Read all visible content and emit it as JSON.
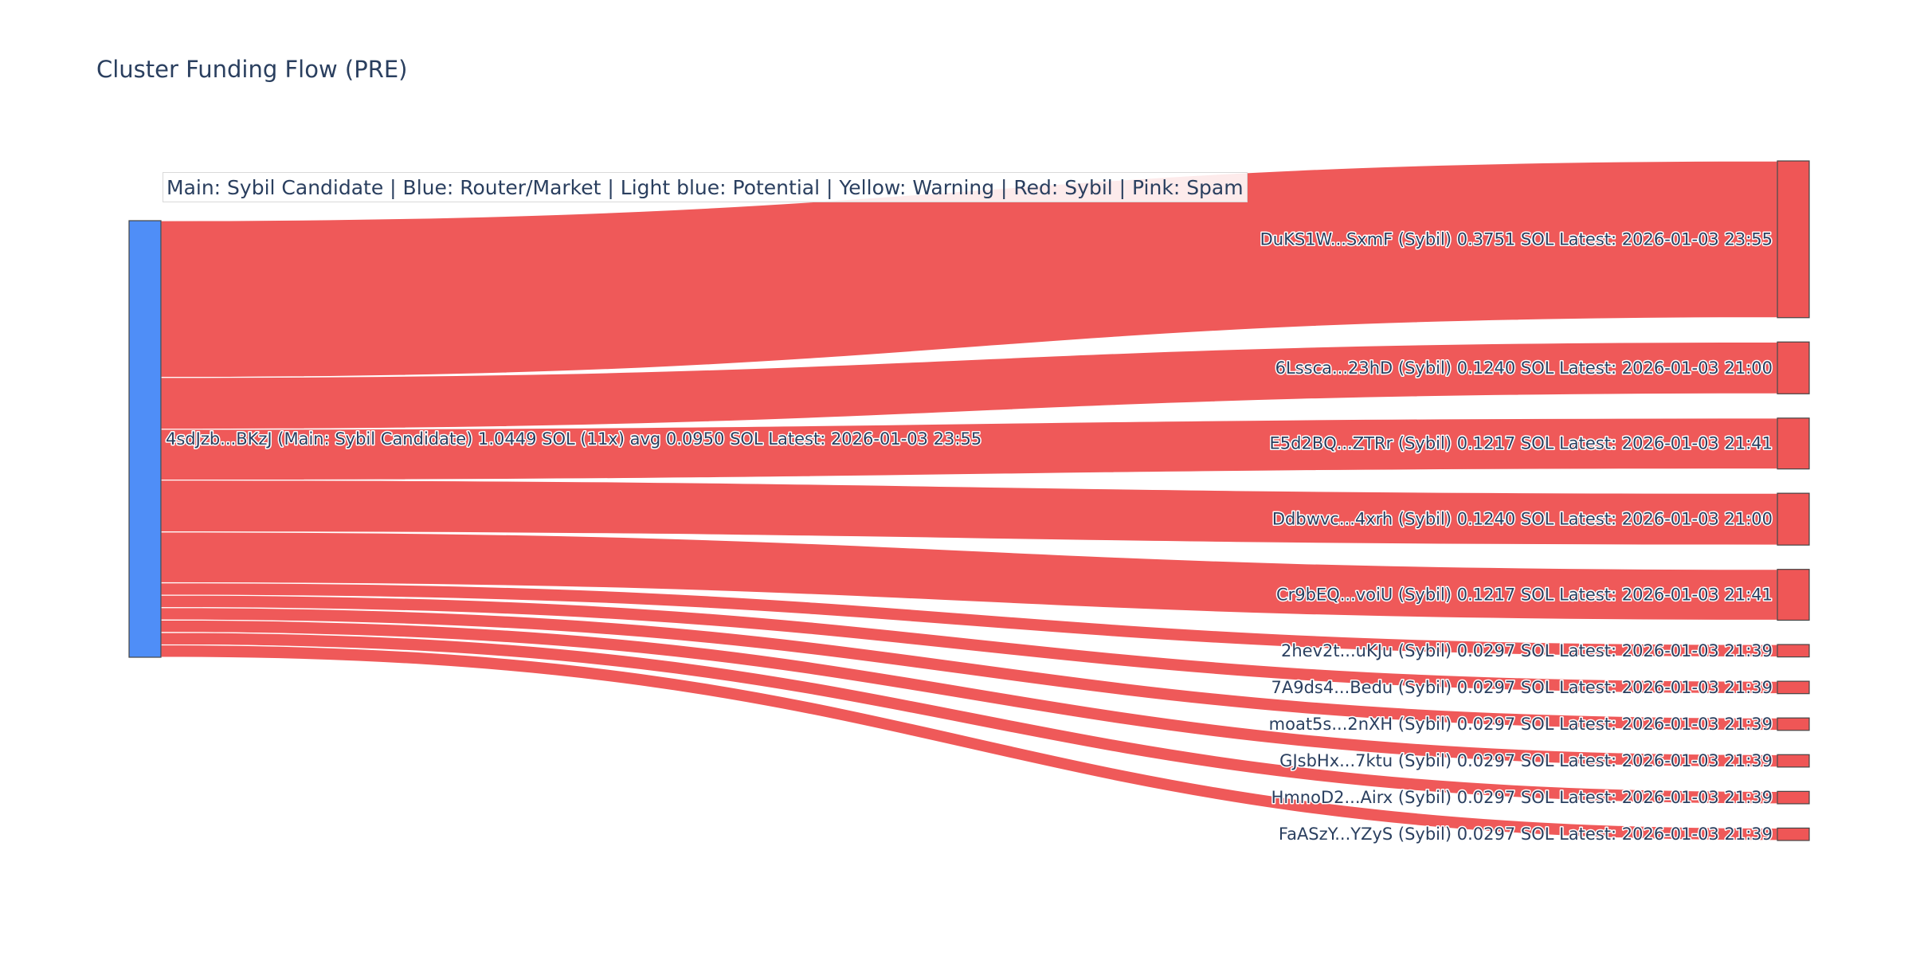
{
  "title": "Cluster Funding Flow (PRE)",
  "legend_note": "Main: Sybil Candidate  |  Blue: Router/Market | Light blue: Potential | Yellow: Warning | Red: Sybil | Pink: Spam",
  "colors": {
    "source_node": "#4f8ef7",
    "sybil": "#ef5656",
    "node_border": "#444444",
    "text": "#2a3f5f"
  },
  "chart_data": {
    "type": "sankey",
    "title": "Cluster Funding Flow (PRE)",
    "source": {
      "id": "4sdJzb...BKzJ",
      "category": "Main: Sybil Candidate",
      "label": "4sdJzb...BKzJ (Main: Sybil Candidate) 1.0449 SOL (11x) avg 0.0950 SOL Latest: 2026-01-03 23:55",
      "total_sol": 1.0449,
      "transfers": 11,
      "avg_sol": 0.095,
      "latest": "2026-01-03 23:55"
    },
    "targets": [
      {
        "id": "DuKS1W...SxmF",
        "category": "Sybil",
        "value": 0.3751,
        "latest": "2026-01-03 23:55",
        "label": "DuKS1W...SxmF (Sybil) 0.3751 SOL Latest: 2026-01-03 23:55"
      },
      {
        "id": "6Lssca...23hD",
        "category": "Sybil",
        "value": 0.124,
        "latest": "2026-01-03 21:00",
        "label": "6Lssca...23hD (Sybil) 0.1240 SOL Latest: 2026-01-03 21:00"
      },
      {
        "id": "E5d2BQ...ZTRr",
        "category": "Sybil",
        "value": 0.1217,
        "latest": "2026-01-03 21:41",
        "label": "E5d2BQ...ZTRr (Sybil) 0.1217 SOL Latest: 2026-01-03 21:41"
      },
      {
        "id": "Ddbwvc...4xrh",
        "category": "Sybil",
        "value": 0.124,
        "latest": "2026-01-03 21:00",
        "label": "Ddbwvc...4xrh (Sybil) 0.1240 SOL Latest: 2026-01-03 21:00"
      },
      {
        "id": "Cr9bEQ...voiU",
        "category": "Sybil",
        "value": 0.1217,
        "latest": "2026-01-03 21:41",
        "label": "Cr9bEQ...voiU (Sybil) 0.1217 SOL Latest: 2026-01-03 21:41"
      },
      {
        "id": "2hev2t...uKJu",
        "category": "Sybil",
        "value": 0.0297,
        "latest": "2026-01-03 21:39",
        "label": "2hev2t...uKJu (Sybil) 0.0297 SOL Latest: 2026-01-03 21:39"
      },
      {
        "id": "7A9ds4...Bedu",
        "category": "Sybil",
        "value": 0.0297,
        "latest": "2026-01-03 21:39",
        "label": "7A9ds4...Bedu (Sybil) 0.0297 SOL Latest: 2026-01-03 21:39"
      },
      {
        "id": "moat5s...2nXH",
        "category": "Sybil",
        "value": 0.0297,
        "latest": "2026-01-03 21:39",
        "label": "moat5s...2nXH (Sybil) 0.0297 SOL Latest: 2026-01-03 21:39"
      },
      {
        "id": "GJsbHx...7ktu",
        "category": "Sybil",
        "value": 0.0297,
        "latest": "2026-01-03 21:39",
        "label": "GJsbHx...7ktu (Sybil) 0.0297 SOL Latest: 2026-01-03 21:39"
      },
      {
        "id": "HmnoD2...Airx",
        "category": "Sybil",
        "value": 0.0297,
        "latest": "2026-01-03 21:39",
        "label": "HmnoD2...Airx (Sybil) 0.0297 SOL Latest: 2026-01-03 21:39"
      },
      {
        "id": "FaASzY...YZyS",
        "category": "Sybil",
        "value": 0.0297,
        "latest": "2026-01-03 21:39",
        "label": "FaASzY...YZyS (Sybil) 0.0297 SOL Latest: 2026-01-03 21:39"
      }
    ]
  }
}
